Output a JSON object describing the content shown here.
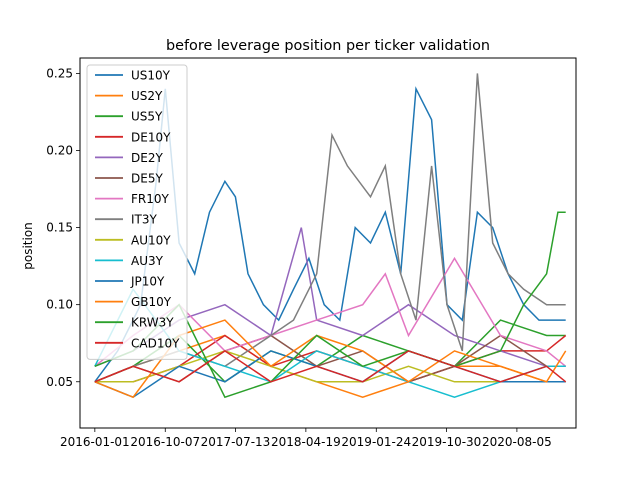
{
  "chart_data": {
    "type": "line",
    "title": "before leverage position per ticker validation",
    "xlabel": "",
    "ylabel": "position",
    "xlim": [
      "2015-11-03",
      "2021-03-28"
    ],
    "ylim": [
      0.02,
      0.26
    ],
    "x_ticks": [
      "2016-01-01",
      "2016-10-07",
      "2017-07-13",
      "2018-04-19",
      "2019-01-24",
      "2019-10-30",
      "2020-08-05"
    ],
    "y_ticks": [
      "0.05",
      "0.10",
      "0.15",
      "0.20",
      "0.25"
    ],
    "y_tick_values": [
      0.05,
      0.1,
      0.15,
      0.2,
      0.25
    ],
    "legend_position": "top-left",
    "series": [
      {
        "name": "US10Y",
        "color": "#1f77b4",
        "x": [
          "2016-01-01",
          "2016-04-01",
          "2016-07-01",
          "2016-09-01",
          "2016-10-07",
          "2016-12-01",
          "2017-02-01",
          "2017-04-01",
          "2017-06-01",
          "2017-07-13",
          "2017-09-01",
          "2017-11-01",
          "2018-01-01",
          "2018-03-01",
          "2018-05-01",
          "2018-07-01",
          "2018-09-01",
          "2018-11-01",
          "2019-01-01",
          "2019-03-01",
          "2019-05-01",
          "2019-07-01",
          "2019-09-01",
          "2019-11-01",
          "2020-01-01",
          "2020-03-01",
          "2020-05-01",
          "2020-07-01",
          "2020-09-01",
          "2020-11-01",
          "2021-01-01",
          "2021-02-15"
        ],
        "values": [
          0.05,
          0.07,
          0.1,
          0.18,
          0.24,
          0.14,
          0.12,
          0.16,
          0.18,
          0.17,
          0.12,
          0.1,
          0.09,
          0.11,
          0.13,
          0.1,
          0.09,
          0.15,
          0.14,
          0.16,
          0.12,
          0.24,
          0.22,
          0.1,
          0.09,
          0.16,
          0.15,
          0.12,
          0.1,
          0.09,
          0.09,
          0.09
        ]
      },
      {
        "name": "US2Y",
        "color": "#ff7f0e",
        "x": [
          "2016-01-01",
          "2016-06-01",
          "2016-12-01",
          "2017-06-01",
          "2017-12-01",
          "2018-06-01",
          "2018-12-01",
          "2019-06-01",
          "2019-12-01",
          "2020-06-01",
          "2020-12-01",
          "2021-02-15"
        ],
        "values": [
          0.05,
          0.06,
          0.07,
          0.08,
          0.06,
          0.05,
          0.04,
          0.05,
          0.06,
          0.06,
          0.05,
          0.05
        ]
      },
      {
        "name": "US5Y",
        "color": "#2ca02c",
        "x": [
          "2016-01-01",
          "2016-06-01",
          "2016-12-01",
          "2017-06-01",
          "2017-12-01",
          "2018-06-01",
          "2018-12-01",
          "2019-06-01",
          "2019-12-01",
          "2020-06-01",
          "2020-12-01",
          "2021-02-15"
        ],
        "values": [
          0.05,
          0.06,
          0.08,
          0.05,
          0.07,
          0.06,
          0.08,
          0.07,
          0.06,
          0.09,
          0.08,
          0.08
        ]
      },
      {
        "name": "DE10Y",
        "color": "#d62728",
        "x": [
          "2016-01-01",
          "2016-06-01",
          "2016-12-01",
          "2017-06-01",
          "2017-12-01",
          "2018-06-01",
          "2018-12-01",
          "2019-06-01",
          "2019-12-01",
          "2020-06-01",
          "2020-12-01",
          "2021-02-15"
        ],
        "values": [
          0.05,
          0.05,
          0.06,
          0.08,
          0.06,
          0.07,
          0.06,
          0.05,
          0.06,
          0.07,
          0.07,
          0.08
        ]
      },
      {
        "name": "DE2Y",
        "color": "#9467bd",
        "x": [
          "2016-01-01",
          "2016-06-01",
          "2016-12-01",
          "2017-06-01",
          "2017-12-01",
          "2018-04-01",
          "2018-06-01",
          "2018-12-01",
          "2019-06-01",
          "2019-12-01",
          "2020-06-01",
          "2020-12-01",
          "2021-02-15"
        ],
        "values": [
          0.06,
          0.07,
          0.09,
          0.1,
          0.08,
          0.15,
          0.09,
          0.08,
          0.1,
          0.08,
          0.07,
          0.06,
          0.06
        ]
      },
      {
        "name": "DE5Y",
        "color": "#8c564b",
        "x": [
          "2016-01-01",
          "2016-06-01",
          "2016-12-01",
          "2017-06-01",
          "2017-12-01",
          "2018-06-01",
          "2018-12-01",
          "2019-06-01",
          "2019-12-01",
          "2020-06-01",
          "2020-12-01",
          "2021-02-15"
        ],
        "values": [
          0.05,
          0.06,
          0.05,
          0.07,
          0.08,
          0.06,
          0.07,
          0.05,
          0.06,
          0.08,
          0.06,
          0.06
        ]
      },
      {
        "name": "FR10Y",
        "color": "#e377c2",
        "x": [
          "2016-01-01",
          "2016-06-01",
          "2016-12-01",
          "2017-06-01",
          "2017-12-01",
          "2018-06-01",
          "2018-12-01",
          "2019-03-01",
          "2019-06-01",
          "2019-12-01",
          "2020-06-01",
          "2020-12-01",
          "2021-02-15"
        ],
        "values": [
          0.06,
          0.08,
          0.1,
          0.07,
          0.08,
          0.09,
          0.1,
          0.12,
          0.08,
          0.13,
          0.08,
          0.07,
          0.06
        ]
      },
      {
        "name": "IT3Y",
        "color": "#7f7f7f",
        "x": [
          "2016-01-01",
          "2016-06-01",
          "2016-12-01",
          "2017-06-01",
          "2017-12-01",
          "2018-03-01",
          "2018-06-01",
          "2018-08-01",
          "2018-10-01",
          "2019-01-01",
          "2019-03-01",
          "2019-05-01",
          "2019-07-01",
          "2019-09-01",
          "2019-11-01",
          "2020-01-01",
          "2020-03-01",
          "2020-05-01",
          "2020-07-01",
          "2020-09-01",
          "2020-12-01",
          "2021-02-15"
        ],
        "values": [
          0.05,
          0.06,
          0.07,
          0.06,
          0.08,
          0.09,
          0.12,
          0.21,
          0.19,
          0.17,
          0.19,
          0.12,
          0.09,
          0.19,
          0.1,
          0.07,
          0.25,
          0.14,
          0.12,
          0.11,
          0.1,
          0.1
        ]
      },
      {
        "name": "AU10Y",
        "color": "#bcbd22",
        "x": [
          "2016-01-01",
          "2016-06-01",
          "2016-12-01",
          "2017-06-01",
          "2017-12-01",
          "2018-06-01",
          "2018-12-01",
          "2019-06-01",
          "2019-12-01",
          "2020-06-01",
          "2020-12-01",
          "2021-02-15"
        ],
        "values": [
          0.05,
          0.05,
          0.06,
          0.07,
          0.06,
          0.05,
          0.05,
          0.06,
          0.05,
          0.05,
          0.05,
          0.05
        ]
      },
      {
        "name": "AU3Y",
        "color": "#17becf",
        "x": [
          "2016-01-01",
          "2016-06-01",
          "2016-12-01",
          "2017-06-01",
          "2017-12-01",
          "2018-06-01",
          "2018-12-01",
          "2019-06-01",
          "2019-12-01",
          "2020-06-01",
          "2020-12-01",
          "2021-02-15"
        ],
        "values": [
          0.06,
          0.11,
          0.07,
          0.06,
          0.05,
          0.07,
          0.06,
          0.05,
          0.04,
          0.05,
          0.06,
          0.06
        ]
      },
      {
        "name": "JP10Y",
        "color": "#1f77b4",
        "x": [
          "2016-01-01",
          "2016-06-01",
          "2016-12-01",
          "2017-06-01",
          "2017-12-01",
          "2018-06-01",
          "2018-12-01",
          "2019-06-01",
          "2019-12-01",
          "2020-06-01",
          "2020-12-01",
          "2021-02-15"
        ],
        "values": [
          0.05,
          0.04,
          0.06,
          0.05,
          0.07,
          0.06,
          0.05,
          0.07,
          0.06,
          0.05,
          0.05,
          0.05
        ]
      },
      {
        "name": "GB10Y",
        "color": "#ff7f0e",
        "x": [
          "2016-01-01",
          "2016-06-01",
          "2016-12-01",
          "2017-06-01",
          "2017-12-01",
          "2018-06-01",
          "2018-12-01",
          "2019-06-01",
          "2019-12-01",
          "2020-06-01",
          "2020-12-01",
          "2021-02-15"
        ],
        "values": [
          0.05,
          0.04,
          0.08,
          0.09,
          0.06,
          0.08,
          0.07,
          0.05,
          0.07,
          0.06,
          0.05,
          0.07
        ]
      },
      {
        "name": "KRW3Y",
        "color": "#2ca02c",
        "x": [
          "2016-01-01",
          "2016-06-01",
          "2016-12-01",
          "2017-06-01",
          "2017-12-01",
          "2018-06-01",
          "2018-12-01",
          "2019-06-01",
          "2019-12-01",
          "2020-06-01",
          "2020-09-01",
          "2020-12-01",
          "2021-01-15",
          "2021-02-15"
        ],
        "values": [
          0.06,
          0.07,
          0.1,
          0.04,
          0.05,
          0.08,
          0.06,
          0.07,
          0.06,
          0.07,
          0.1,
          0.12,
          0.16,
          0.16
        ]
      },
      {
        "name": "CAD10Y",
        "color": "#d62728",
        "x": [
          "2016-01-01",
          "2016-06-01",
          "2016-12-01",
          "2017-06-01",
          "2017-12-01",
          "2018-06-01",
          "2018-12-01",
          "2019-06-01",
          "2019-12-01",
          "2020-06-01",
          "2020-12-01",
          "2021-02-15"
        ],
        "values": [
          0.05,
          0.06,
          0.05,
          0.07,
          0.05,
          0.06,
          0.05,
          0.07,
          0.06,
          0.05,
          0.06,
          0.05
        ]
      }
    ]
  }
}
